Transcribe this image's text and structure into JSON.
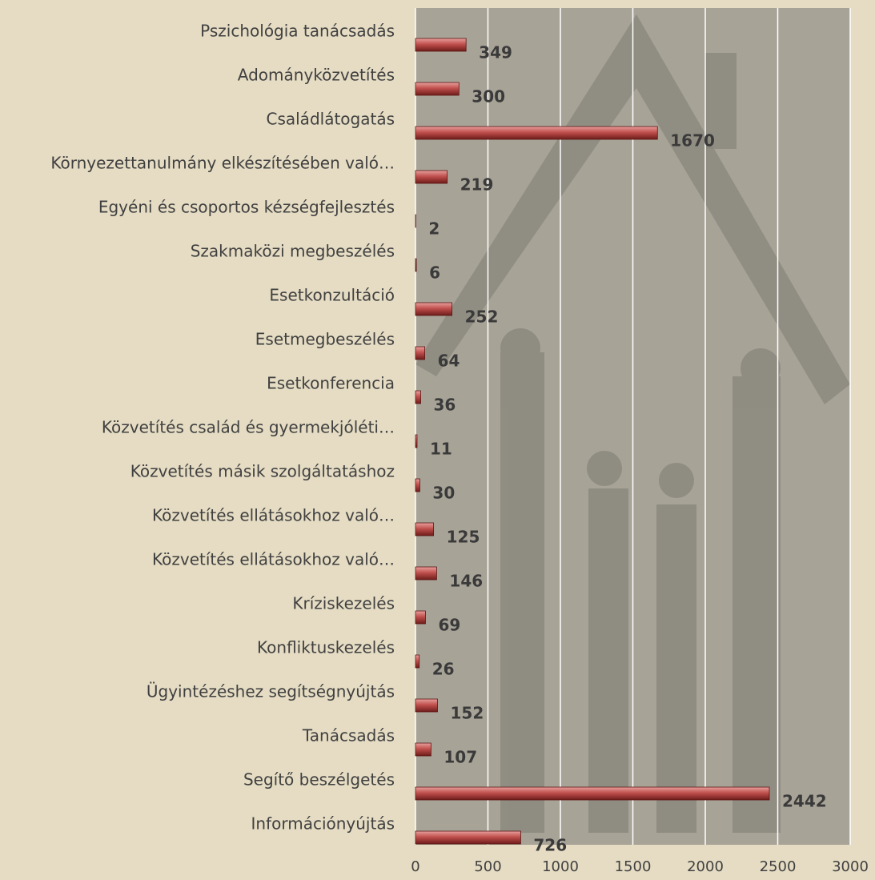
{
  "chart_data": {
    "type": "bar",
    "orientation": "horizontal",
    "categories": [
      "Pszichológia tanácsadás",
      "Adományközvetítés",
      "Családlátogatás",
      "Környezettanulmány elkészítésében való…",
      "Egyéni és csoportos kézségfejlesztés",
      "Szakmaközi megbeszélés",
      "Esetkonzultáció",
      "Esetmegbeszélés",
      "Esetkonferencia",
      "Közvetítés család és gyermekjóléti…",
      "Közvetítés másik szolgáltatáshoz",
      "Közvetítés ellátásokhoz való…",
      "Közvetítés ellátásokhoz való…",
      "Kríziskezelés",
      "Konfliktuskezelés",
      "Ügyintézéshez segítségnyújtás",
      "Tanácsadás",
      "Segítő beszélgetés",
      "Információnyújtás"
    ],
    "values": [
      349,
      300,
      1670,
      219,
      2,
      6,
      252,
      64,
      36,
      11,
      30,
      125,
      146,
      69,
      26,
      152,
      107,
      2442,
      726
    ],
    "color": "#c0504d",
    "xlim": [
      0,
      3000
    ],
    "xticks": [
      0,
      500,
      1000,
      1500,
      2000,
      2500,
      3000
    ],
    "grid": true
  }
}
